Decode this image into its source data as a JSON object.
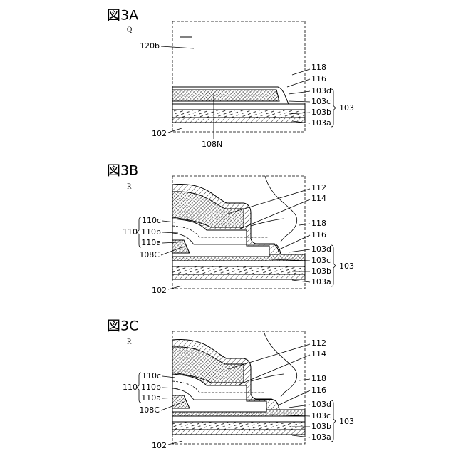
{
  "figures": [
    {
      "title": "図3A",
      "mark": "Q",
      "labels": [
        "120b",
        "118",
        "116",
        "103d",
        "103c",
        "103b",
        "103a",
        "103",
        "102",
        "108N"
      ]
    },
    {
      "title": "図3B",
      "mark": "R",
      "labels": [
        "112",
        "114",
        "118",
        "110c",
        "110b",
        "110a",
        "110",
        "116",
        "108C",
        "103d",
        "103c",
        "103b",
        "103a",
        "103",
        "102"
      ]
    },
    {
      "title": "図3C",
      "mark": "R",
      "labels": [
        "112",
        "114",
        "118",
        "110c",
        "110b",
        "110a",
        "110",
        "116",
        "108C",
        "103d",
        "103c",
        "103b",
        "103a",
        "103",
        "102"
      ]
    }
  ]
}
